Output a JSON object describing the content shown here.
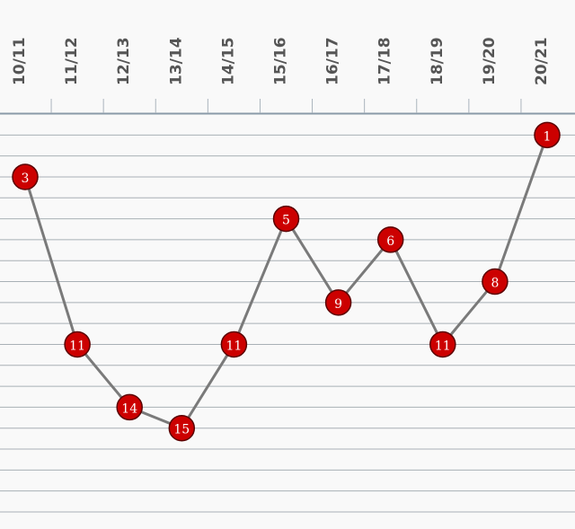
{
  "chart_data": {
    "type": "line",
    "categories": [
      "10/11",
      "11/12",
      "12/13",
      "13/14",
      "14/15",
      "15/16",
      "16/17",
      "17/18",
      "18/19",
      "19/20",
      "20/21"
    ],
    "values": [
      3,
      11,
      14,
      15,
      11,
      5,
      9,
      6,
      11,
      8,
      1
    ],
    "color": "#cc0000",
    "line_color": "#7a7a7a",
    "ylim": [
      0,
      19
    ],
    "inverted": true,
    "grid": true,
    "yticks": [
      1,
      2,
      3,
      4,
      5,
      6,
      7,
      8,
      9,
      10,
      11,
      12,
      13,
      14,
      15,
      16,
      17,
      18,
      19
    ]
  }
}
